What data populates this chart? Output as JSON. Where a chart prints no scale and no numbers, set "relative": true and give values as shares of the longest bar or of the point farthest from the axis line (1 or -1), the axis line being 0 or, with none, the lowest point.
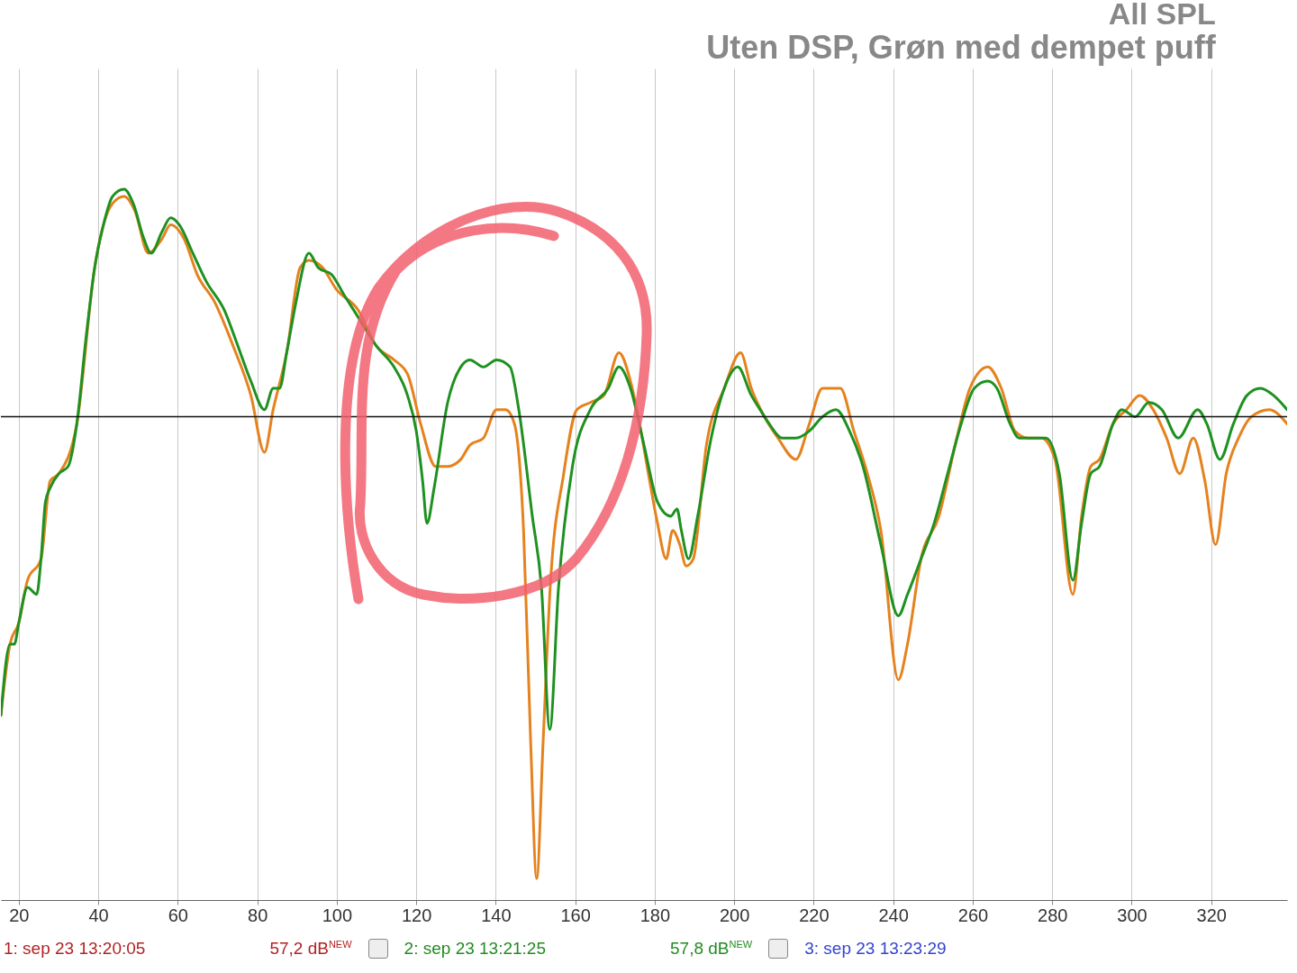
{
  "chart_data": {
    "type": "line",
    "title": "All SPL",
    "subtitle": "Uten DSP, Grøn med dempet puff",
    "relative": true,
    "grid": "x",
    "line_style": "solid",
    "xlim": [
      15.5,
      339.1
    ],
    "xticks": [
      20,
      40,
      60,
      80,
      100,
      120,
      140,
      160,
      180,
      200,
      220,
      240,
      260,
      280,
      300,
      320
    ],
    "ref_lines": [
      {
        "axis": "y",
        "value": 0.68
      }
    ],
    "annotations": [
      "1: sep 23 13:20:05",
      "57,2 dB$^{NEW}$",
      "2: sep 23 13:21:25",
      "57,8 dB$^{NEW}$",
      "3: sep 23 13:23:29"
    ],
    "series": [
      {
        "color": "#e5821e",
        "x": [
          15.5,
          17.8,
          20,
          22.2,
          25.6,
          27.9,
          30.1,
          34.6,
          39.1,
          41.3,
          43.6,
          46.5,
          49.2,
          52.6,
          56.0,
          58.2,
          61.6,
          64.9,
          69.4,
          73.9,
          78.4,
          81.8,
          84.0,
          87.4,
          90.8,
          93.0,
          96.4,
          99.8,
          105.4,
          109.9,
          114.4,
          117.8,
          121.1,
          124.9,
          127.9,
          131.2,
          133.5,
          136.9,
          140.2,
          142.5,
          144.7,
          147.0,
          148.8,
          150.3,
          151.9,
          153.7,
          157.1,
          160.4,
          163.8,
          167.2,
          171.0,
          173.9,
          176.2,
          178.4,
          180.7,
          182.9,
          184.5,
          186.3,
          187.9,
          189.7,
          193.0,
          197.5,
          201.6,
          204.3,
          207.6,
          211.0,
          215.5,
          218.9,
          222.2,
          226.7,
          230.1,
          233.5,
          236.9,
          241.3,
          243.6,
          247.0,
          251.5,
          256.0,
          259.3,
          263.8,
          267.2,
          270.6,
          273.9,
          277.3,
          280.7,
          285.2,
          287.4,
          289.7,
          291.9,
          295.3,
          298.7,
          302.0,
          305.4,
          308.8,
          312.1,
          315.5,
          318.4,
          321.1,
          323.8,
          326.9,
          330.1,
          334.6,
          339.1
        ],
        "values": [
          0.26,
          0.36,
          0.39,
          0.45,
          0.48,
          0.59,
          0.6,
          0.67,
          0.89,
          0.95,
          0.98,
          0.99,
          0.97,
          0.91,
          0.93,
          0.95,
          0.93,
          0.88,
          0.84,
          0.78,
          0.71,
          0.63,
          0.69,
          0.77,
          0.89,
          0.9,
          0.89,
          0.86,
          0.83,
          0.78,
          0.76,
          0.74,
          0.67,
          0.61,
          0.61,
          0.62,
          0.64,
          0.65,
          0.69,
          0.69,
          0.67,
          0.52,
          0.22,
          0.03,
          0.22,
          0.44,
          0.6,
          0.69,
          0.7,
          0.71,
          0.77,
          0.73,
          0.67,
          0.6,
          0.53,
          0.48,
          0.52,
          0.5,
          0.47,
          0.48,
          0.64,
          0.72,
          0.77,
          0.72,
          0.68,
          0.65,
          0.62,
          0.67,
          0.72,
          0.72,
          0.66,
          0.6,
          0.52,
          0.31,
          0.36,
          0.48,
          0.54,
          0.65,
          0.72,
          0.75,
          0.72,
          0.66,
          0.65,
          0.65,
          0.62,
          0.43,
          0.54,
          0.61,
          0.62,
          0.67,
          0.69,
          0.71,
          0.69,
          0.65,
          0.6,
          0.65,
          0.59,
          0.5,
          0.6,
          0.65,
          0.68,
          0.69,
          0.67
        ]
      },
      {
        "color": "#1e9120",
        "x": [
          15.5,
          17.8,
          18.9,
          20,
          22.2,
          24.5,
          25.6,
          26.7,
          27.9,
          30.1,
          32.4,
          34.6,
          36.9,
          39.1,
          41.3,
          43.6,
          46.5,
          48.8,
          51.5,
          53.3,
          56.0,
          58.2,
          60.4,
          63.8,
          67.2,
          71.7,
          75.1,
          78.4,
          81.8,
          84.0,
          85.6,
          87.4,
          89.7,
          93.0,
          95.3,
          98.7,
          102.0,
          105.4,
          109.9,
          114.4,
          117.8,
          120.0,
          121.6,
          122.7,
          124.5,
          127.9,
          131.2,
          133.5,
          136.9,
          140.2,
          143.6,
          145.8,
          149.2,
          151.5,
          153.6,
          155.8,
          159.3,
          163.8,
          168.3,
          171.0,
          173.9,
          177.3,
          180.7,
          184.0,
          185.6,
          186.7,
          188.5,
          190.8,
          194.2,
          197.5,
          200.9,
          204.3,
          206.5,
          208.8,
          212.1,
          215.5,
          218.9,
          222.2,
          225.6,
          229.0,
          232.4,
          236.9,
          241.3,
          243.6,
          247.0,
          250.3,
          253.7,
          257.1,
          260.4,
          263.8,
          266.1,
          269.4,
          271.7,
          275.1,
          278.4,
          281.8,
          285.2,
          287.4,
          289.7,
          291.9,
          295.3,
          297.5,
          300.9,
          304.3,
          307.6,
          311.7,
          316.6,
          318.9,
          322.2,
          325.6,
          329.0,
          332.4,
          335.7,
          339.1
        ],
        "values": [
          0.26,
          0.36,
          0.36,
          0.39,
          0.44,
          0.43,
          0.48,
          0.56,
          0.58,
          0.6,
          0.61,
          0.67,
          0.79,
          0.89,
          0.95,
          0.99,
          1.0,
          0.98,
          0.93,
          0.91,
          0.94,
          0.96,
          0.95,
          0.91,
          0.87,
          0.83,
          0.78,
          0.73,
          0.69,
          0.72,
          0.72,
          0.77,
          0.84,
          0.91,
          0.89,
          0.88,
          0.85,
          0.82,
          0.78,
          0.75,
          0.71,
          0.66,
          0.59,
          0.53,
          0.58,
          0.7,
          0.75,
          0.76,
          0.75,
          0.76,
          0.75,
          0.69,
          0.54,
          0.44,
          0.24,
          0.44,
          0.61,
          0.69,
          0.72,
          0.75,
          0.72,
          0.64,
          0.56,
          0.54,
          0.55,
          0.52,
          0.48,
          0.54,
          0.65,
          0.72,
          0.75,
          0.71,
          0.69,
          0.67,
          0.65,
          0.65,
          0.66,
          0.68,
          0.69,
          0.66,
          0.61,
          0.5,
          0.4,
          0.43,
          0.48,
          0.53,
          0.6,
          0.67,
          0.72,
          0.73,
          0.72,
          0.67,
          0.65,
          0.65,
          0.65,
          0.6,
          0.45,
          0.53,
          0.6,
          0.61,
          0.67,
          0.69,
          0.68,
          0.7,
          0.69,
          0.65,
          0.69,
          0.67,
          0.62,
          0.67,
          0.71,
          0.72,
          0.71,
          0.69
        ]
      }
    ]
  }
}
